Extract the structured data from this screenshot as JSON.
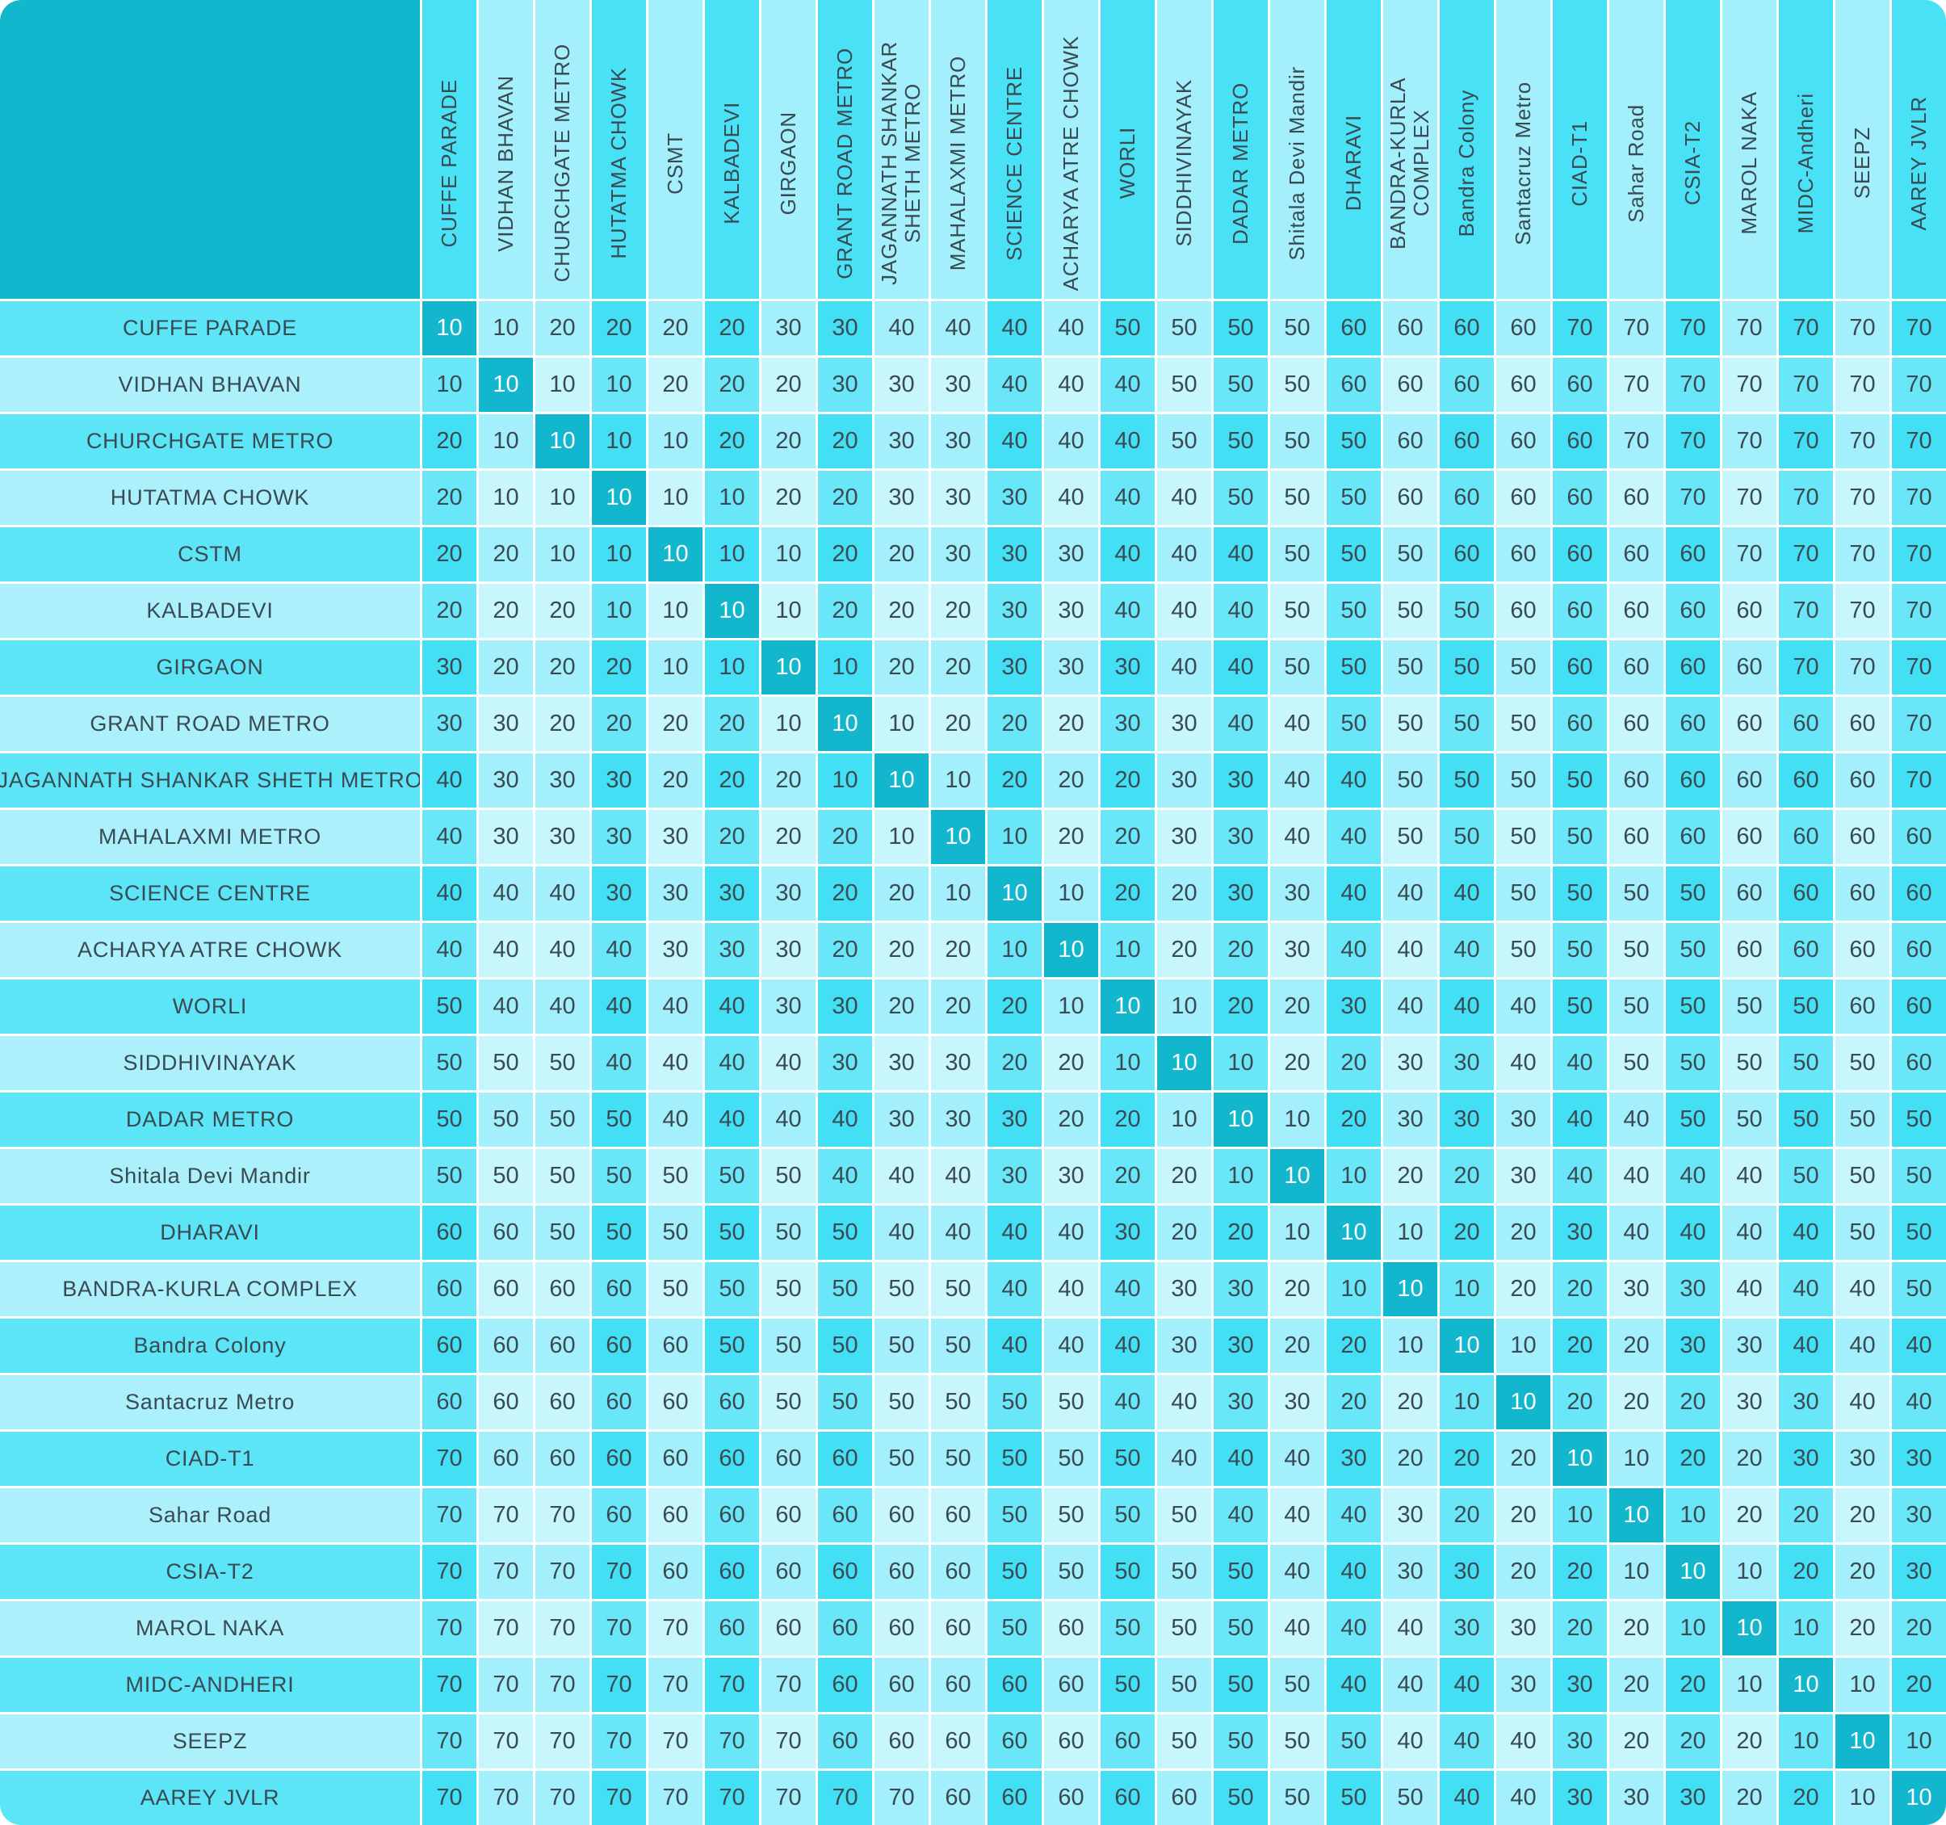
{
  "colors": {
    "teal_accent": "#12B7CE",
    "cell_dark_row_dark_col": "#43DFF4",
    "cell_dark_row_light_col": "#A3EFFB",
    "cell_light_row_dark_col": "#69E7F8",
    "cell_light_row_light_col": "#C7F6FD",
    "row_label_dark": "#5BE5F7",
    "row_label_light": "#ACF0FC",
    "col_header_dark": "#49E1F5",
    "col_header_light": "#A3EFFB",
    "text": "#3A4A52",
    "diagonal_text": "#FFFFFF",
    "grid_line": "#FFFFFF"
  },
  "chart_data": {
    "type": "heatmap",
    "title": "",
    "description": "Station-to-station fare matrix; diagonal (same station) cells highlighted teal with value 10",
    "columns": [
      "CUFFE PARADE",
      "VIDHAN BHAVAN",
      "CHURCHGATE METRO",
      "HUTATMA CHOWK",
      "CSMT",
      "KALBADEVI",
      "GIRGAON",
      "GRANT ROAD METRO",
      "JAGANNATH SHANKAR SHETH METRO",
      "MAHALAXMI METRO",
      "SCIENCE CENTRE",
      "ACHARYA ATRE CHOWK",
      "WORLI",
      "SIDDHIVINAYAK",
      "DADAR METRO",
      "Shitala Devi Mandir",
      "DHARAVI",
      "BANDRA-KURLA COMPLEX",
      "Bandra Colony",
      "Santacruz Metro",
      "CIAD-T1",
      "Sahar Road",
      "CSIA-T2",
      "MAROL NAKA",
      "MIDC-Andheri",
      "SEEPZ",
      "AAREY JVLR"
    ],
    "rows": [
      "CUFFE PARADE",
      "VIDHAN BHAVAN",
      "CHURCHGATE METRO",
      "HUTATMA CHOWK",
      "CSTM",
      "KALBADEVI",
      "GIRGAON",
      "GRANT ROAD METRO",
      "JAGANNATH SHANKAR SHETH METRO",
      "MAHALAXMI METRO",
      "SCIENCE CENTRE",
      "ACHARYA ATRE CHOWK",
      "WORLI",
      "SIDDHIVINAYAK",
      "DADAR METRO",
      "Shitala Devi Mandir",
      "DHARAVI",
      "BANDRA-KURLA COMPLEX",
      "Bandra Colony",
      "Santacruz Metro",
      "CIAD-T1",
      "Sahar Road",
      "CSIA-T2",
      "MAROL NAKA",
      "MIDC-ANDHERI",
      "SEEPZ",
      "AAREY JVLR"
    ],
    "values": [
      [
        10,
        10,
        20,
        20,
        20,
        20,
        30,
        30,
        40,
        40,
        40,
        40,
        50,
        50,
        50,
        50,
        60,
        60,
        60,
        60,
        70,
        70,
        70,
        70,
        70,
        70,
        70
      ],
      [
        10,
        10,
        10,
        10,
        20,
        20,
        20,
        30,
        30,
        30,
        40,
        40,
        40,
        50,
        50,
        50,
        60,
        60,
        60,
        60,
        60,
        70,
        70,
        70,
        70,
        70,
        70
      ],
      [
        20,
        10,
        10,
        10,
        10,
        20,
        20,
        20,
        30,
        30,
        40,
        40,
        40,
        50,
        50,
        50,
        50,
        60,
        60,
        60,
        60,
        70,
        70,
        70,
        70,
        70,
        70
      ],
      [
        20,
        10,
        10,
        10,
        10,
        10,
        20,
        20,
        30,
        30,
        30,
        40,
        40,
        40,
        50,
        50,
        50,
        60,
        60,
        60,
        60,
        60,
        70,
        70,
        70,
        70,
        70
      ],
      [
        20,
        20,
        10,
        10,
        10,
        10,
        10,
        20,
        20,
        30,
        30,
        30,
        40,
        40,
        40,
        50,
        50,
        50,
        60,
        60,
        60,
        60,
        60,
        70,
        70,
        70,
        70
      ],
      [
        20,
        20,
        20,
        10,
        10,
        10,
        10,
        20,
        20,
        20,
        30,
        30,
        40,
        40,
        40,
        50,
        50,
        50,
        50,
        60,
        60,
        60,
        60,
        60,
        70,
        70,
        70
      ],
      [
        30,
        20,
        20,
        20,
        10,
        10,
        10,
        10,
        20,
        20,
        30,
        30,
        30,
        40,
        40,
        50,
        50,
        50,
        50,
        50,
        60,
        60,
        60,
        60,
        70,
        70,
        70
      ],
      [
        30,
        30,
        20,
        20,
        20,
        20,
        10,
        10,
        10,
        20,
        20,
        20,
        30,
        30,
        40,
        40,
        50,
        50,
        50,
        50,
        60,
        60,
        60,
        60,
        60,
        60,
        70
      ],
      [
        40,
        30,
        30,
        30,
        20,
        20,
        20,
        10,
        10,
        10,
        20,
        20,
        20,
        30,
        30,
        40,
        40,
        50,
        50,
        50,
        50,
        60,
        60,
        60,
        60,
        60,
        70
      ],
      [
        40,
        30,
        30,
        30,
        30,
        20,
        20,
        20,
        10,
        10,
        10,
        20,
        20,
        30,
        30,
        40,
        40,
        50,
        50,
        50,
        50,
        60,
        60,
        60,
        60,
        60,
        60
      ],
      [
        40,
        40,
        40,
        30,
        30,
        30,
        30,
        20,
        20,
        10,
        10,
        10,
        20,
        20,
        30,
        30,
        40,
        40,
        40,
        50,
        50,
        50,
        50,
        60,
        60,
        60,
        60
      ],
      [
        40,
        40,
        40,
        40,
        30,
        30,
        30,
        20,
        20,
        20,
        10,
        10,
        10,
        20,
        20,
        30,
        40,
        40,
        40,
        50,
        50,
        50,
        50,
        60,
        60,
        60,
        60
      ],
      [
        50,
        40,
        40,
        40,
        40,
        40,
        30,
        30,
        20,
        20,
        20,
        10,
        10,
        10,
        20,
        20,
        30,
        40,
        40,
        40,
        50,
        50,
        50,
        50,
        50,
        60,
        60
      ],
      [
        50,
        50,
        50,
        40,
        40,
        40,
        40,
        30,
        30,
        30,
        20,
        20,
        10,
        10,
        10,
        20,
        20,
        30,
        30,
        40,
        40,
        50,
        50,
        50,
        50,
        50,
        60
      ],
      [
        50,
        50,
        50,
        50,
        40,
        40,
        40,
        40,
        30,
        30,
        30,
        20,
        20,
        10,
        10,
        10,
        20,
        30,
        30,
        30,
        40,
        40,
        50,
        50,
        50,
        50,
        50
      ],
      [
        50,
        50,
        50,
        50,
        50,
        50,
        50,
        40,
        40,
        40,
        30,
        30,
        20,
        20,
        10,
        10,
        10,
        20,
        20,
        30,
        40,
        40,
        40,
        40,
        50,
        50,
        50
      ],
      [
        60,
        60,
        50,
        50,
        50,
        50,
        50,
        50,
        40,
        40,
        40,
        40,
        30,
        20,
        20,
        10,
        10,
        10,
        20,
        20,
        30,
        40,
        40,
        40,
        40,
        50,
        50
      ],
      [
        60,
        60,
        60,
        60,
        50,
        50,
        50,
        50,
        50,
        50,
        40,
        40,
        40,
        30,
        30,
        20,
        10,
        10,
        10,
        20,
        20,
        30,
        30,
        40,
        40,
        40,
        50
      ],
      [
        60,
        60,
        60,
        60,
        60,
        50,
        50,
        50,
        50,
        50,
        40,
        40,
        40,
        30,
        30,
        20,
        20,
        10,
        10,
        10,
        20,
        20,
        30,
        30,
        40,
        40,
        40
      ],
      [
        60,
        60,
        60,
        60,
        60,
        60,
        50,
        50,
        50,
        50,
        50,
        50,
        40,
        40,
        30,
        30,
        20,
        20,
        10,
        10,
        20,
        20,
        20,
        30,
        30,
        40,
        40
      ],
      [
        70,
        60,
        60,
        60,
        60,
        60,
        60,
        60,
        50,
        50,
        50,
        50,
        50,
        40,
        40,
        40,
        30,
        20,
        20,
        20,
        10,
        10,
        20,
        20,
        30,
        30,
        30
      ],
      [
        70,
        70,
        70,
        60,
        60,
        60,
        60,
        60,
        60,
        60,
        50,
        50,
        50,
        50,
        40,
        40,
        40,
        30,
        20,
        20,
        10,
        10,
        10,
        20,
        20,
        20,
        30
      ],
      [
        70,
        70,
        70,
        70,
        60,
        60,
        60,
        60,
        60,
        60,
        50,
        50,
        50,
        50,
        50,
        40,
        40,
        30,
        30,
        20,
        20,
        10,
        10,
        10,
        20,
        20,
        30
      ],
      [
        70,
        70,
        70,
        70,
        70,
        60,
        60,
        60,
        60,
        60,
        50,
        60,
        50,
        50,
        50,
        40,
        40,
        40,
        30,
        30,
        20,
        20,
        10,
        10,
        10,
        20,
        20
      ],
      [
        70,
        70,
        70,
        70,
        70,
        70,
        70,
        60,
        60,
        60,
        60,
        60,
        50,
        50,
        50,
        50,
        40,
        40,
        40,
        30,
        30,
        20,
        20,
        10,
        10,
        10,
        20
      ],
      [
        70,
        70,
        70,
        70,
        70,
        70,
        70,
        60,
        60,
        60,
        60,
        60,
        60,
        50,
        50,
        50,
        50,
        40,
        40,
        40,
        30,
        20,
        20,
        20,
        10,
        10,
        10
      ],
      [
        70,
        70,
        70,
        70,
        70,
        70,
        70,
        70,
        70,
        60,
        60,
        60,
        60,
        60,
        50,
        50,
        50,
        50,
        40,
        40,
        30,
        30,
        30,
        20,
        20,
        10,
        10
      ]
    ]
  }
}
